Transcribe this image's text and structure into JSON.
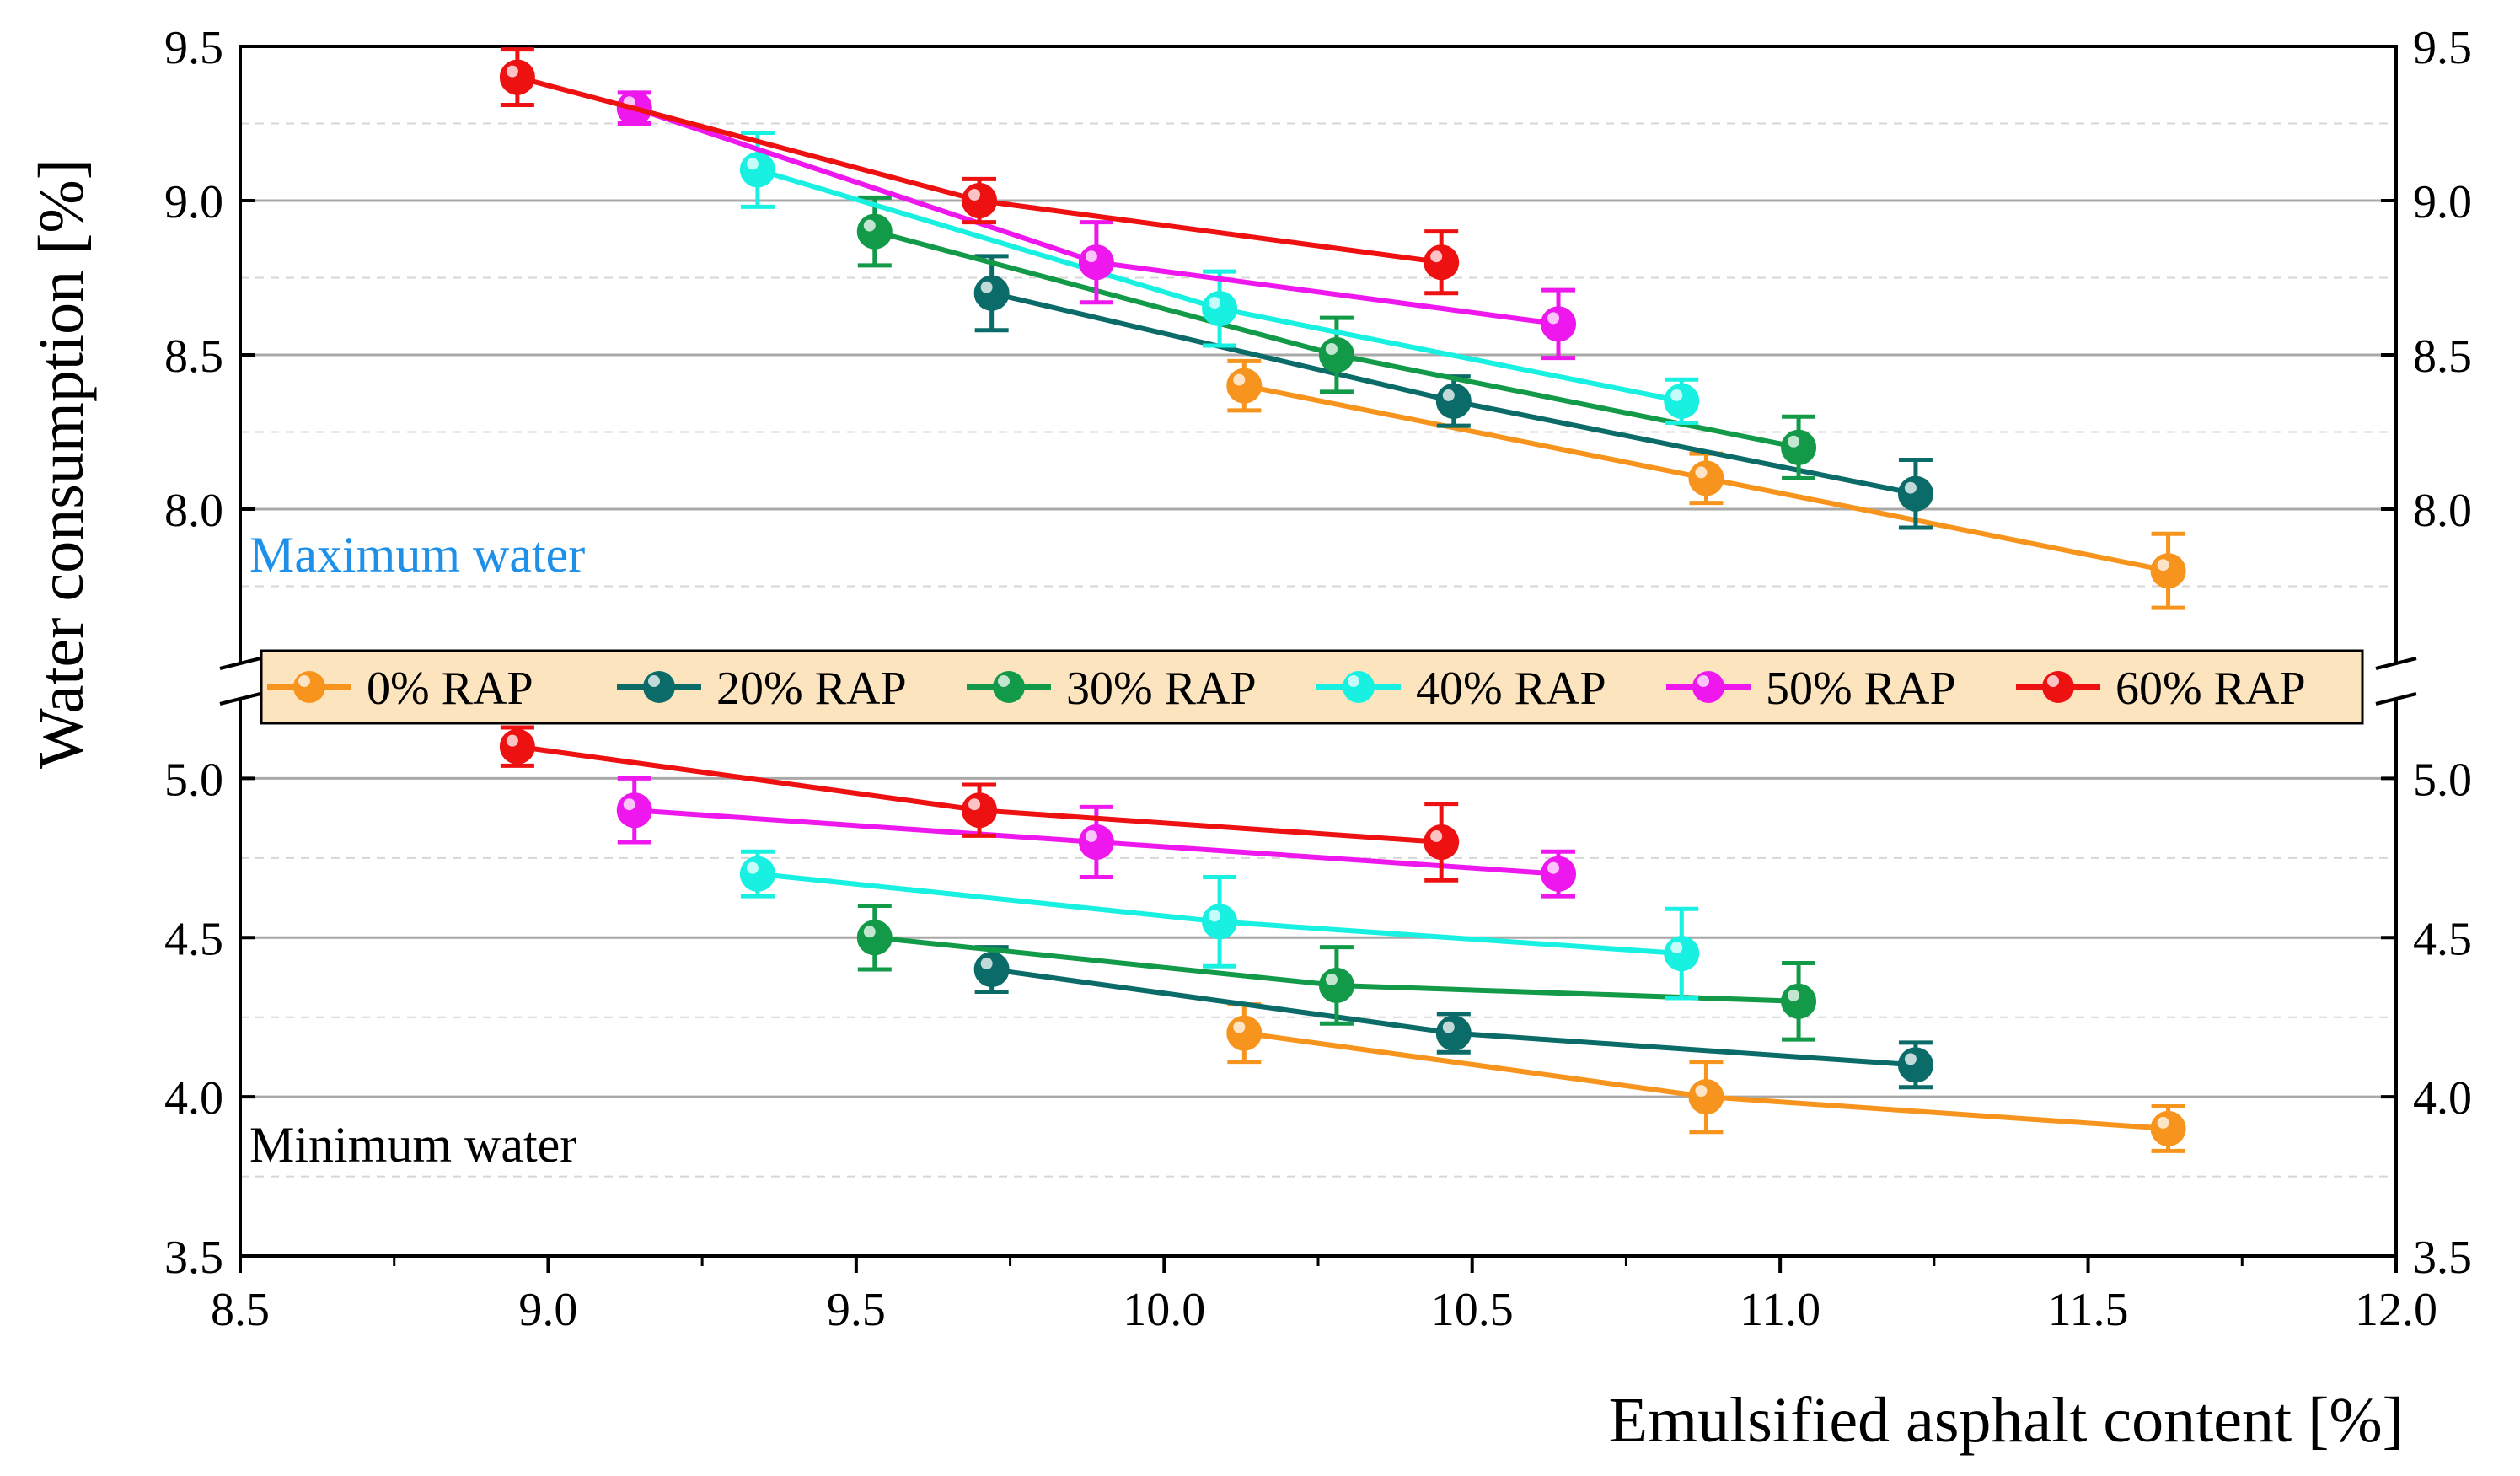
{
  "chart_data": {
    "type": "line",
    "xlabel": "Emulsified asphalt content [%]",
    "ylabel": "Water consumption  [%]",
    "xlim": [
      8.5,
      12.0
    ],
    "x_ticks": [
      "8.5",
      "9.0",
      "9.5",
      "10.0",
      "10.5",
      "11.0",
      "11.5",
      "12.0"
    ],
    "upper_panel": {
      "annotation": "Maximum water",
      "ylim": [
        7.5,
        9.5
      ],
      "y_ticks": [
        "8.0",
        "8.5",
        "9.0",
        "9.5"
      ],
      "grid": true
    },
    "lower_panel": {
      "annotation": "Minimum water",
      "ylim": [
        3.5,
        5.25
      ],
      "y_ticks": [
        "3.5",
        "4.0",
        "4.5",
        "5.0"
      ],
      "grid": true
    },
    "legend_position": "center (between panels)",
    "series": [
      {
        "name": "0% RAP",
        "color": "#F7941D",
        "max": {
          "x": [
            10.13,
            10.88,
            11.63
          ],
          "y": [
            8.4,
            8.1,
            7.8
          ],
          "err": [
            0.08,
            0.08,
            0.12
          ]
        },
        "min": {
          "x": [
            10.13,
            10.88,
            11.63
          ],
          "y": [
            4.2,
            4.0,
            3.9
          ],
          "err": [
            0.09,
            0.11,
            0.07
          ]
        }
      },
      {
        "name": "20% RAP",
        "color": "#0B6B68",
        "max": {
          "x": [
            9.72,
            10.47,
            11.22
          ],
          "y": [
            8.7,
            8.35,
            8.05
          ],
          "err": [
            0.12,
            0.08,
            0.11
          ]
        },
        "min": {
          "x": [
            9.72,
            10.47,
            11.22
          ],
          "y": [
            4.4,
            4.2,
            4.1
          ],
          "err": [
            0.07,
            0.06,
            0.07
          ]
        }
      },
      {
        "name": "30% RAP",
        "color": "#129A48",
        "max": {
          "x": [
            9.53,
            10.28,
            11.03
          ],
          "y": [
            8.9,
            8.5,
            8.2
          ],
          "err": [
            0.11,
            0.12,
            0.1
          ]
        },
        "min": {
          "x": [
            9.53,
            10.28,
            11.03
          ],
          "y": [
            4.5,
            4.35,
            4.3
          ],
          "err": [
            0.1,
            0.12,
            0.12
          ]
        }
      },
      {
        "name": "40% RAP",
        "color": "#18F0E2",
        "max": {
          "x": [
            9.34,
            10.09,
            10.84
          ],
          "y": [
            9.1,
            8.65,
            8.35
          ],
          "err": [
            0.12,
            0.12,
            0.07
          ]
        },
        "min": {
          "x": [
            9.34,
            10.09,
            10.84
          ],
          "y": [
            4.7,
            4.55,
            4.45
          ],
          "err": [
            0.07,
            0.14,
            0.14
          ]
        }
      },
      {
        "name": "50% RAP",
        "color": "#EE18EE",
        "max": {
          "x": [
            9.14,
            9.89,
            10.64
          ],
          "y": [
            9.3,
            8.8,
            8.6
          ],
          "err": [
            0.05,
            0.13,
            0.11
          ]
        },
        "min": {
          "x": [
            9.14,
            9.89,
            10.64
          ],
          "y": [
            4.9,
            4.8,
            4.7
          ],
          "err": [
            0.1,
            0.11,
            0.07
          ]
        }
      },
      {
        "name": "60% RAP",
        "color": "#EE1111",
        "max": {
          "x": [
            8.95,
            9.7,
            10.45
          ],
          "y": [
            9.4,
            9.0,
            8.8
          ],
          "err": [
            0.09,
            0.07,
            0.1
          ]
        },
        "min": {
          "x": [
            8.95,
            9.7,
            10.45
          ],
          "y": [
            5.1,
            4.9,
            4.8
          ],
          "err": [
            0.06,
            0.08,
            0.12
          ]
        }
      }
    ]
  }
}
